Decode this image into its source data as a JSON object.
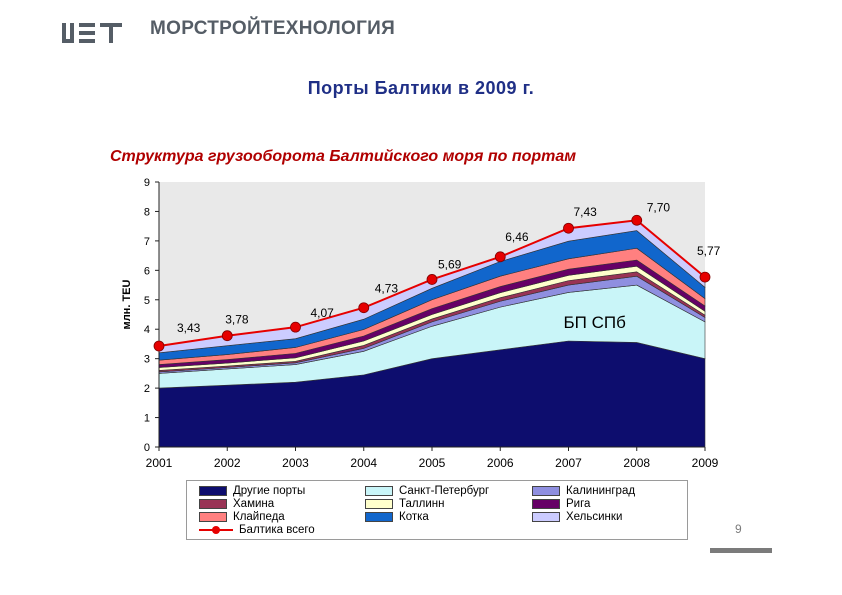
{
  "header": {
    "brand": "МОРСТРОЙТЕХНОЛОГИЯ",
    "title": "Порты Балтики в 2009 г.",
    "subtitle": "Структура грузооборота Балтийского моря по портам"
  },
  "colors": {
    "title": "#1f2f86",
    "subtitle": "#b00000",
    "brand": "#555d66",
    "plot_bg": "#e9e9e9"
  },
  "chart_data": {
    "type": "area",
    "stacked": true,
    "categories": [
      "2001",
      "2002",
      "2003",
      "2004",
      "2005",
      "2006",
      "2007",
      "2008",
      "2009"
    ],
    "ylabel": "млн. TEU",
    "ylim": [
      0,
      9
    ],
    "yticks": [
      "0",
      "1",
      "2",
      "3",
      "4",
      "5",
      "6",
      "7",
      "8",
      "9"
    ],
    "annotation": "БП СПб",
    "series": [
      {
        "name": "Другие порты",
        "color": "#0d0d6e",
        "values": [
          2.0,
          2.1,
          2.2,
          2.45,
          3.0,
          3.3,
          3.6,
          3.55,
          3.0
        ]
      },
      {
        "name": "Санкт-Петербург",
        "color": "#c9f5f8",
        "values": [
          0.5,
          0.55,
          0.6,
          0.8,
          1.1,
          1.45,
          1.65,
          1.95,
          1.25
        ]
      },
      {
        "name": "Калининград",
        "color": "#8f8fe0",
        "values": [
          0.05,
          0.05,
          0.06,
          0.1,
          0.15,
          0.2,
          0.25,
          0.3,
          0.15
        ]
      },
      {
        "name": "Хамина",
        "color": "#993355",
        "values": [
          0.05,
          0.05,
          0.05,
          0.1,
          0.1,
          0.12,
          0.15,
          0.15,
          0.08
        ]
      },
      {
        "name": "Таллинн",
        "color": "#ffffcc",
        "values": [
          0.1,
          0.1,
          0.12,
          0.15,
          0.15,
          0.17,
          0.18,
          0.19,
          0.13
        ]
      },
      {
        "name": "Рига",
        "color": "#660066",
        "values": [
          0.1,
          0.12,
          0.15,
          0.17,
          0.2,
          0.21,
          0.21,
          0.21,
          0.18
        ]
      },
      {
        "name": "Клайпеда",
        "color": "#ff8080",
        "values": [
          0.15,
          0.17,
          0.2,
          0.22,
          0.3,
          0.35,
          0.35,
          0.4,
          0.25
        ]
      },
      {
        "name": "Котка",
        "color": "#1166cc",
        "values": [
          0.25,
          0.3,
          0.3,
          0.35,
          0.39,
          0.5,
          0.6,
          0.6,
          0.38
        ]
      },
      {
        "name": "Хельсинки",
        "color": "#ccccff",
        "values": [
          0.23,
          0.34,
          0.39,
          0.39,
          0.3,
          0.16,
          0.44,
          0.35,
          0.35
        ]
      }
    ],
    "total": {
      "name": "Балтика всего",
      "color": "#e60000",
      "values": [
        3.43,
        3.78,
        4.07,
        4.73,
        5.69,
        6.46,
        7.43,
        7.7,
        5.77
      ],
      "labels": [
        "3,43",
        "3,78",
        "4,07",
        "4,73",
        "5,69",
        "6,46",
        "7,43",
        "7,70",
        "5,77"
      ]
    }
  },
  "legend": [
    {
      "label": "Другие порты",
      "key": "Другие порты"
    },
    {
      "label": "Санкт-Петербург",
      "key": "Санкт-Петербург"
    },
    {
      "label": "Калининград",
      "key": "Калининград"
    },
    {
      "label": "Хамина",
      "key": "Хамина"
    },
    {
      "label": "Таллинн",
      "key": "Таллинн"
    },
    {
      "label": "Рига",
      "key": "Рига"
    },
    {
      "label": "Клайпеда",
      "key": "Клайпеда"
    },
    {
      "label": "Котка",
      "key": "Котка"
    },
    {
      "label": "Хельсинки",
      "key": "Хельсинки"
    },
    {
      "label": "Балтика всего",
      "key": "total"
    }
  ],
  "footer": {
    "page": "9"
  }
}
